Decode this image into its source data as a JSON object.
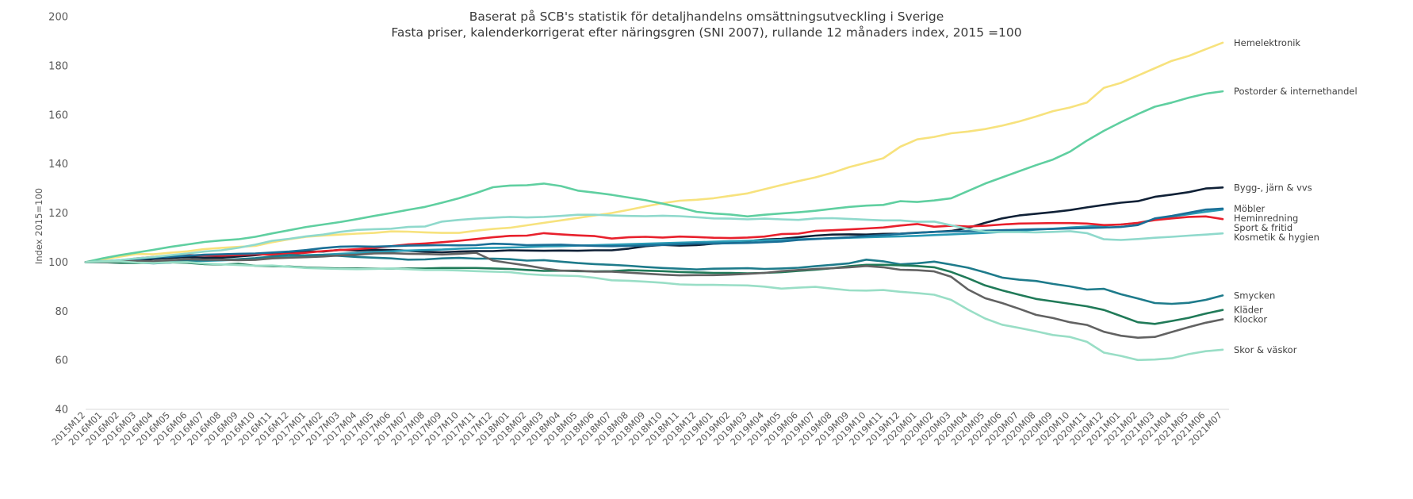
{
  "chart_data": {
    "type": "line",
    "title": "Baserat på SCB's statistik för detaljhandelns omsättningsutveckling i Sverige",
    "subtitle": "Fasta priser, kalenderkorrigerat efter näringsgren (SNI 2007), rullande 12 månaders index, 2015 =100",
    "xlabel": "",
    "ylabel": "Index 2015=100",
    "ylim": [
      40,
      200
    ],
    "yticks": [
      40,
      60,
      80,
      100,
      120,
      140,
      160,
      180,
      200
    ],
    "grid": false,
    "legend": "labels at line ends (right)",
    "x": [
      "2015M12",
      "2016M01",
      "2016M02",
      "2016M03",
      "2016M04",
      "2016M05",
      "2016M06",
      "2016M07",
      "2016M08",
      "2016M09",
      "2016M10",
      "2016M11",
      "2016M12",
      "2017M01",
      "2017M02",
      "2017M03",
      "2017M04",
      "2017M05",
      "2017M06",
      "2017M07",
      "2017M08",
      "2017M09",
      "2017M10",
      "2017M11",
      "2017M12",
      "2018M01",
      "2018M02",
      "2018M03",
      "2018M04",
      "2018M05",
      "2018M06",
      "2018M07",
      "2018M08",
      "2018M09",
      "2018M10",
      "2018M11",
      "2018M12",
      "2019M01",
      "2019M02",
      "2019M03",
      "2019M04",
      "2019M05",
      "2019M06",
      "2019M07",
      "2019M08",
      "2019M09",
      "2019M10",
      "2019M11",
      "2019M12",
      "2020M01",
      "2020M02",
      "2020M03",
      "2020M04",
      "2020M05",
      "2020M06",
      "2020M07",
      "2020M08",
      "2020M09",
      "2020M10",
      "2020M11",
      "2020M12",
      "2021M01",
      "2021M02",
      "2021M03",
      "2021M04",
      "2021M05",
      "2021M06",
      "2021M07"
    ],
    "series": [
      {
        "name": "Hemelektronik",
        "color": "#f7e27d",
        "values": [
          100,
          101.1,
          102.2,
          103.3,
          103.2,
          103.8,
          104.4,
          105.3,
          105.8,
          106.2,
          106.6,
          108.1,
          109.3,
          110.3,
          110.8,
          111.2,
          111.6,
          111.9,
          112.5,
          112.4,
          112.1,
          111.9,
          111.9,
          112.8,
          113.5,
          114,
          115,
          116,
          117,
          118,
          119,
          120,
          121.3,
          122.7,
          124,
          125,
          125.4,
          126,
          127,
          128,
          129.7,
          131.4,
          133,
          134.5,
          136.4,
          138.7,
          140.5,
          142.3,
          147,
          150,
          151,
          152.5,
          153.2,
          154.2,
          155.6,
          157.3,
          159.3,
          161.5,
          163,
          165,
          171,
          173,
          176,
          179,
          182,
          184,
          186.7,
          189.4
        ]
      },
      {
        "name": "Postorder & internethandel",
        "color": "#5fcfa0",
        "values": [
          100,
          101.5,
          102.8,
          103.9,
          105,
          106.2,
          107.2,
          108.2,
          108.8,
          109.3,
          110.3,
          111.7,
          113,
          114.3,
          115.3,
          116.3,
          117.5,
          118.8,
          120,
          121.3,
          122.5,
          124.2,
          126,
          128.1,
          130.5,
          131.2,
          131.3,
          132,
          131,
          129.1,
          128.3,
          127.4,
          126.3,
          125.2,
          123.8,
          122.3,
          120.5,
          119.8,
          119.4,
          118.6,
          119.3,
          119.8,
          120.3,
          120.9,
          121.7,
          122.5,
          123,
          123.3,
          124.8,
          124.5,
          125.1,
          126,
          129,
          132,
          134.5,
          137,
          139.5,
          141.8,
          145,
          149.5,
          153.5,
          157,
          160.3,
          163.3,
          165,
          167,
          168.6,
          169.6
        ]
      },
      {
        "name": "Bygg-, järn & vvs",
        "color": "#0f2036",
        "values": [
          100,
          100,
          99.9,
          100.8,
          101.3,
          101.7,
          102.1,
          101.8,
          101.8,
          102.3,
          102.8,
          103.5,
          103.7,
          104.3,
          104.3,
          105,
          104.7,
          105,
          104.9,
          104.6,
          104.2,
          104,
          104.3,
          104.5,
          104.5,
          104.8,
          104.7,
          104.6,
          104.7,
          104.6,
          104.8,
          104.8,
          105.5,
          106.5,
          107,
          106.7,
          106.9,
          107.5,
          107.8,
          108.5,
          109.2,
          109.5,
          110.1,
          110.8,
          111.2,
          111.3,
          111.2,
          111.5,
          111.6,
          112,
          112.3,
          112.7,
          114,
          116,
          117.8,
          119,
          119.7,
          120.4,
          121.2,
          122.3,
          123.3,
          124.2,
          124.8,
          126.6,
          127.5,
          128.5,
          130,
          130.4
        ]
      },
      {
        "name": "Heminredning",
        "color": "#2a9bb5",
        "values": [
          100,
          100,
          99.8,
          100.5,
          100.2,
          100.5,
          100.4,
          100.5,
          100.7,
          101,
          101.3,
          101.9,
          102.1,
          102.8,
          103,
          103.4,
          103.7,
          104.1,
          104.4,
          104.7,
          104.9,
          105.1,
          105.5,
          105.7,
          105.8,
          105.9,
          106.1,
          106.4,
          106.5,
          106.7,
          106.9,
          107.1,
          107.3,
          107.5,
          107.7,
          107.9,
          108.1,
          108.3,
          108.5,
          108.7,
          108.9,
          109.1,
          109.3,
          109.5,
          109.7,
          109.9,
          110.1,
          110.3,
          110.5,
          110.7,
          111,
          111.3,
          111.6,
          111.9,
          112.3,
          112.8,
          113.2,
          113.6,
          114.1,
          114.5,
          114.9,
          115.3,
          115.9,
          117.4,
          118.5,
          119.5,
          120.5,
          121.4
        ]
      },
      {
        "name": "Sport & fritid",
        "color": "#e8202c",
        "values": [
          100,
          100.3,
          100.6,
          101.5,
          102.1,
          102.5,
          102.8,
          102.7,
          102.6,
          102.9,
          103.2,
          103,
          103.4,
          103.8,
          104.5,
          104.9,
          105.3,
          105.8,
          106.5,
          107.2,
          107.6,
          108.1,
          108.7,
          109.4,
          110.1,
          110.7,
          110.8,
          111.8,
          111.3,
          110.9,
          110.6,
          109.6,
          110.1,
          110.3,
          110,
          110.4,
          110.2,
          109.9,
          109.8,
          110,
          110.4,
          111.4,
          111.6,
          112.7,
          113,
          113.3,
          113.7,
          114.1,
          114.9,
          115.5,
          114.4,
          114.8,
          114.5,
          114.8,
          115.3,
          115.7,
          115.8,
          115.9,
          115.9,
          115.7,
          115.1,
          115.3,
          116,
          117.1,
          117.8,
          118.4,
          118.6,
          117.5
        ]
      },
      {
        "name": "Möbler",
        "color": "#1a6f97",
        "values": [
          100,
          100.3,
          100.8,
          101.3,
          101.8,
          102.2,
          102.6,
          103,
          103.2,
          103.4,
          103.5,
          103.9,
          104.3,
          104.9,
          105.7,
          106.3,
          106.4,
          106.3,
          106.5,
          106.7,
          106.8,
          106.9,
          106.8,
          106.9,
          107.5,
          107.3,
          106.9,
          107,
          107.1,
          106.8,
          106.6,
          106.5,
          106.6,
          106.8,
          107,
          107.3,
          107.6,
          107.6,
          107.7,
          107.8,
          108.1,
          108.4,
          109,
          109.4,
          109.8,
          110.1,
          110.6,
          111,
          111.5,
          111.9,
          112.3,
          112.5,
          112.6,
          112.8,
          113,
          113.2,
          113.4,
          113.5,
          113.7,
          113.9,
          114.1,
          114.3,
          115.1,
          117.8,
          118.8,
          120.1,
          121.4,
          121.8
        ]
      },
      {
        "name": "Kosmetik & hygien",
        "color": "#8fd9cc",
        "values": [
          100,
          100.4,
          100.8,
          101.5,
          102.1,
          102.8,
          103.5,
          104.3,
          104.8,
          105.8,
          107.1,
          108.7,
          109.5,
          110.5,
          111.2,
          112.3,
          113.1,
          113.4,
          113.6,
          114.3,
          114.5,
          116.5,
          117.2,
          117.7,
          118.1,
          118.4,
          118.2,
          118.4,
          118.8,
          119.3,
          119.3,
          119,
          118.8,
          118.7,
          118.9,
          118.7,
          118.3,
          117.8,
          117.7,
          117.4,
          117.7,
          117.4,
          117.2,
          117.8,
          117.9,
          117.6,
          117.3,
          117,
          117,
          116.4,
          116.5,
          115,
          113.5,
          112.4,
          112.2,
          112.2,
          112.1,
          112.3,
          112.6,
          111.8,
          109.3,
          109,
          109.4,
          109.9,
          110.3,
          110.8,
          111.2,
          111.7
        ]
      },
      {
        "name": "Smycken",
        "color": "#1e7b8b",
        "values": [
          100,
          100,
          100,
          99.8,
          99.5,
          99.8,
          100.6,
          100.7,
          100.9,
          101.2,
          101.6,
          102.3,
          102.9,
          102.7,
          102.8,
          102.5,
          102.1,
          101.8,
          101.5,
          101,
          101.1,
          101.5,
          101.7,
          101.4,
          101.4,
          101.2,
          100.6,
          100.8,
          100.2,
          99.6,
          99.2,
          98.9,
          98.5,
          98,
          97.6,
          97.3,
          97,
          97.3,
          97.4,
          97.5,
          97.2,
          97.4,
          97.7,
          98.3,
          98.9,
          99.5,
          101,
          100.3,
          99.1,
          99.5,
          100.2,
          99,
          97.7,
          95.8,
          93.7,
          92.8,
          92.3,
          91.1,
          90.1,
          88.8,
          89.1,
          86.9,
          85.2,
          83.3,
          83,
          83.4,
          84.6,
          86.4
        ]
      },
      {
        "name": "Kläder",
        "color": "#207a58",
        "values": [
          100,
          100,
          99.7,
          99.6,
          99.8,
          99.9,
          99.7,
          99.2,
          99,
          99.3,
          98.5,
          98.3,
          98.2,
          97.8,
          97.6,
          97.4,
          97.4,
          97.3,
          97.3,
          97.4,
          97.4,
          97.6,
          97.6,
          97.6,
          97.4,
          97.2,
          96.8,
          96.4,
          96.5,
          96.3,
          96.2,
          96.3,
          96.7,
          96.5,
          96.3,
          96,
          95.8,
          95.6,
          95.6,
          95.4,
          95.6,
          95.9,
          96.4,
          96.9,
          97.5,
          98.3,
          98.9,
          98.9,
          98.7,
          98.4,
          97.9,
          96,
          93.4,
          90.5,
          88.5,
          86.7,
          85,
          84,
          83,
          82,
          80.5,
          78,
          75.5,
          74.8,
          76,
          77.3,
          79,
          80.5
        ]
      },
      {
        "name": "Klockor",
        "color": "#626262",
        "values": [
          100,
          100,
          100.2,
          100.5,
          100.3,
          100.8,
          101.2,
          101,
          100.9,
          100.8,
          100.9,
          101.5,
          101.8,
          102,
          102.3,
          102.7,
          103,
          103.5,
          103.6,
          103.4,
          103.3,
          103.1,
          103.4,
          103.8,
          100.6,
          99.6,
          98.6,
          97.4,
          96.5,
          96.5,
          96.1,
          96.1,
          95.7,
          95.3,
          94.9,
          94.6,
          94.7,
          94.7,
          94.9,
          95.2,
          95.6,
          96.3,
          96.8,
          97.2,
          97.5,
          97.9,
          98.4,
          97.9,
          96.9,
          96.7,
          96.2,
          94,
          88.8,
          85.3,
          83.3,
          81,
          78.5,
          77.2,
          75.5,
          74.4,
          71.6,
          70,
          69.2,
          69.5,
          71.5,
          73.5,
          75.3,
          76.7
        ]
      },
      {
        "name": "Skor & väskor",
        "color": "#99dec6",
        "values": [
          100,
          100.2,
          100.3,
          99.8,
          99.6,
          99.9,
          100,
          99.4,
          99.1,
          98.8,
          98.5,
          98.6,
          98.1,
          97.6,
          97.4,
          97.2,
          97.1,
          97.2,
          97.4,
          97.1,
          96.8,
          96.8,
          96.6,
          96.3,
          96.1,
          95.9,
          95.1,
          94.7,
          94.5,
          94.3,
          93.6,
          92.6,
          92.4,
          92,
          91.6,
          90.9,
          90.7,
          90.7,
          90.6,
          90.5,
          90,
          89.2,
          89.6,
          89.9,
          89.2,
          88.5,
          88.4,
          88.6,
          87.9,
          87.4,
          86.7,
          84.6,
          80.6,
          77,
          74.5,
          73.2,
          71.8,
          70.3,
          69.5,
          67.5,
          63.1,
          61.8,
          60.1,
          60.3,
          60.8,
          62.5,
          63.7,
          64.3
        ]
      }
    ]
  }
}
